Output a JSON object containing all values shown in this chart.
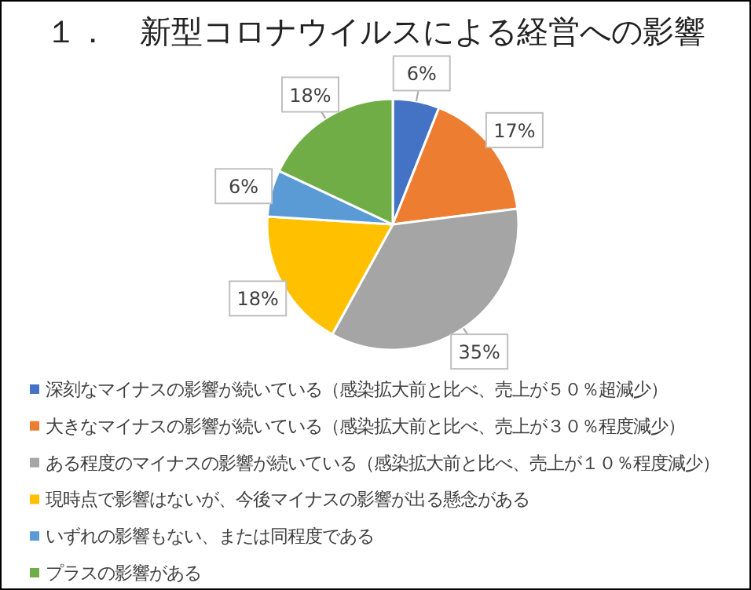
{
  "chart_data": {
    "type": "pie",
    "title": "１．　新型コロナウイルスによる経営への影響",
    "categories": [
      "深刻なマイナスの影響が続いている（感染拡大前と比べ、売上が５０％超減少）",
      "大きなマイナスの影響が続いている（感染拡大前と比べ、売上が３０％程度減少）",
      "ある程度のマイナスの影響が続いている（感染拡大前と比べ、売上が１０％程度減少）",
      "現時点で影響はないが、今後マイナスの影響が出る懸念がある",
      "いずれの影響もない、または同程度である",
      "プラスの影響がある"
    ],
    "values": [
      6,
      17,
      35,
      18,
      6,
      18
    ],
    "colors": [
      "#4472c4",
      "#ed7d31",
      "#a5a5a5",
      "#ffc000",
      "#5b9bd5",
      "#70ad47"
    ],
    "value_labels": [
      "6%",
      "17%",
      "35%",
      "18%",
      "6%",
      "18%"
    ],
    "legend": "bottom"
  }
}
